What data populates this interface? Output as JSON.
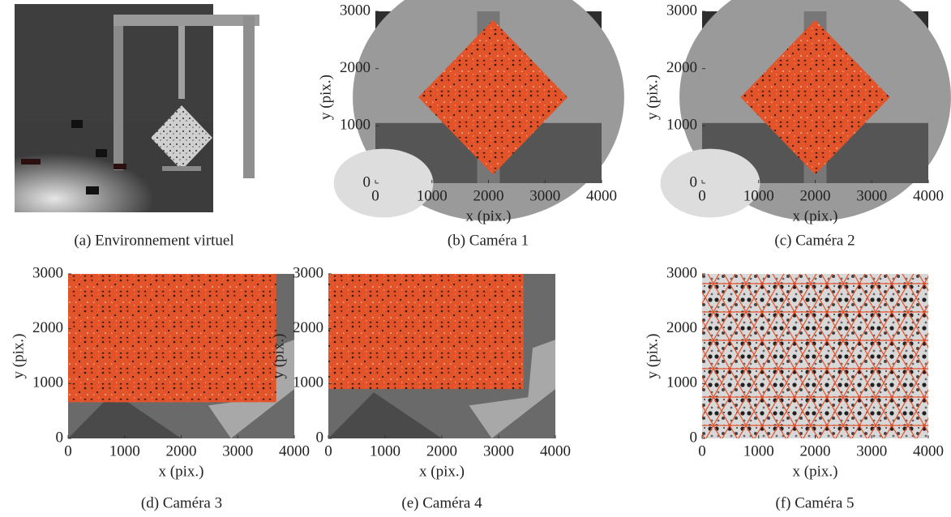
{
  "panels": [
    {
      "caption": "(a) Environnement virtuel"
    },
    {
      "caption": "(b) Caméra 1",
      "xlabel": "x (pix.)",
      "ylabel": "y (pix.)",
      "xlim": [
        0,
        4000
      ],
      "ylim": [
        0,
        3000
      ],
      "xticks": [
        0,
        1000,
        2000,
        3000,
        4000
      ],
      "yticks": [
        0,
        1000,
        2000,
        3000
      ]
    },
    {
      "caption": "(c) Caméra 2",
      "xlabel": "x (pix.)",
      "ylabel": "y (pix.)",
      "xlim": [
        0,
        4000
      ],
      "ylim": [
        0,
        3000
      ],
      "xticks": [
        0,
        1000,
        2000,
        3000,
        4000
      ],
      "yticks": [
        0,
        1000,
        2000,
        3000
      ]
    },
    {
      "caption": "(d) Caméra 3",
      "xlabel": "x (pix.)",
      "ylabel": "y (pix.)",
      "xlim": [
        0,
        4000
      ],
      "ylim": [
        0,
        3000
      ],
      "xticks": [
        0,
        1000,
        2000,
        3000,
        4000
      ],
      "yticks": [
        0,
        1000,
        2000,
        3000
      ]
    },
    {
      "caption": "(e) Caméra 4",
      "xlabel": "x (pix.)",
      "ylabel": "y (pix.)",
      "xlim": [
        0,
        4000
      ],
      "ylim": [
        0,
        3000
      ],
      "xticks": [
        0,
        1000,
        2000,
        3000,
        4000
      ],
      "yticks": [
        0,
        1000,
        2000,
        3000
      ]
    },
    {
      "caption": "(f) Caméra 5",
      "xlabel": "x (pix.)",
      "ylabel": "y (pix.)",
      "xlim": [
        0,
        4000
      ],
      "ylim": [
        0,
        3000
      ],
      "xticks": [
        0,
        1000,
        2000,
        3000,
        4000
      ],
      "yticks": [
        0,
        1000,
        2000,
        3000
      ]
    }
  ]
}
